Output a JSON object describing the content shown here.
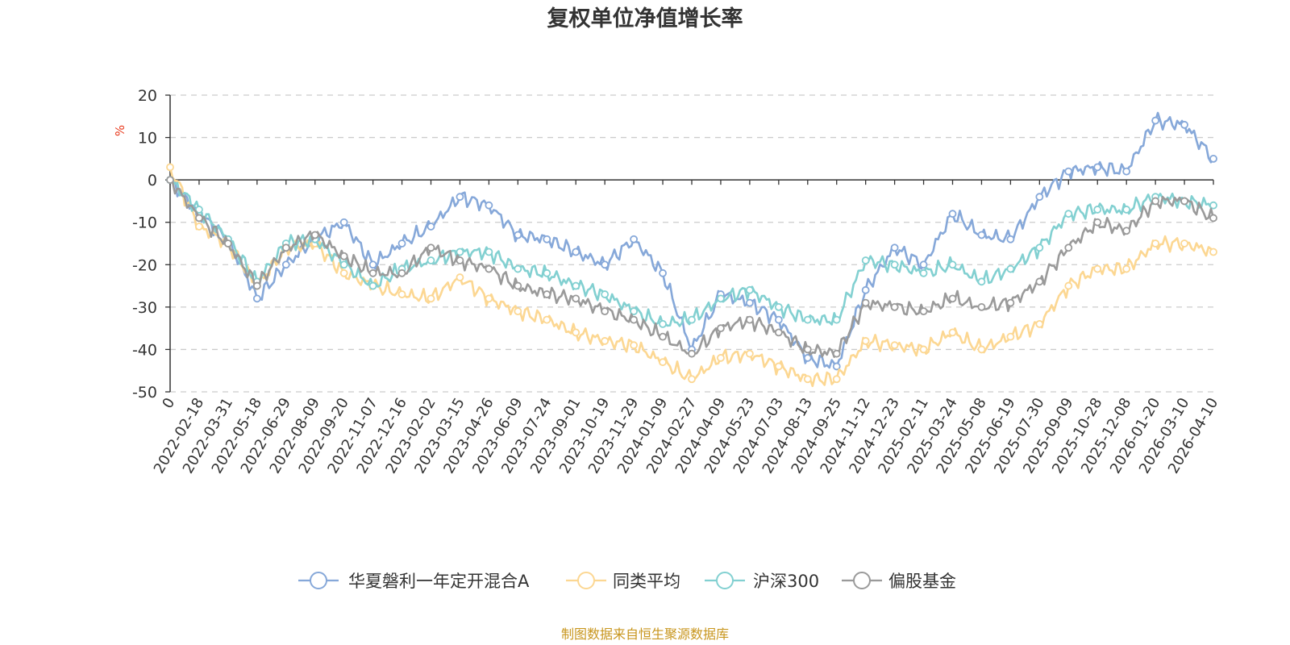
{
  "chart_data": {
    "type": "line",
    "title": "复权单位净值增长率",
    "ylabel": "%",
    "xlabel": "",
    "ylim": [
      -50,
      20
    ],
    "yticks": [
      20,
      10,
      0,
      -10,
      -20,
      -30,
      -40,
      -50
    ],
    "grid": true,
    "legend_position": "bottom-center",
    "source": "制图数据来自恒生聚源数据库",
    "categories": [
      "0",
      "2022-02-18",
      "2022-03-31",
      "2022-05-18",
      "2022-06-29",
      "2022-08-09",
      "2022-09-20",
      "2022-11-07",
      "2022-12-16",
      "2023-02-02",
      "2023-03-15",
      "2023-04-26",
      "2023-06-09",
      "2023-07-24",
      "2023-09-01",
      "2023-10-19",
      "2023-11-29",
      "2024-01-09",
      "2024-02-27",
      "2024-04-09",
      "2024-05-23",
      "2024-07-03",
      "2024-08-13",
      "2024-09-25",
      "2024-11-12",
      "2024-12-23",
      "2025-02-11",
      "2025-03-24",
      "2025-05-08",
      "2025-06-19",
      "2025-07-30",
      "2025-09-09",
      "2025-10-28",
      "2025-12-08",
      "2026-01-20",
      "2026-03-10",
      "2026-04-10"
    ],
    "series": [
      {
        "name": "华夏磐利一年定开混合A",
        "color": "#86a8d9",
        "values": [
          0,
          -8,
          -14,
          -28,
          -20,
          -14,
          -10,
          -20,
          -15,
          -11,
          -4,
          -6,
          -13,
          -14,
          -17,
          -20,
          -14,
          -22,
          -40,
          -27,
          -29,
          -33,
          -42,
          -44,
          -26,
          -16,
          -20,
          -8,
          -13,
          -14,
          -4,
          2,
          3,
          2,
          14,
          13,
          5
        ]
      },
      {
        "name": "同类平均",
        "color": "#fcd792",
        "values": [
          3,
          -11,
          -15,
          -25,
          -16,
          -15,
          -22,
          -25,
          -27,
          -28,
          -23,
          -28,
          -31,
          -33,
          -36,
          -38,
          -39,
          -43,
          -47,
          -42,
          -41,
          -44,
          -47,
          -47,
          -38,
          -39,
          -40,
          -36,
          -40,
          -37,
          -34,
          -25,
          -21,
          -21,
          -15,
          -15,
          -17
        ]
      },
      {
        "name": "沪深300",
        "color": "#82d0d1",
        "values": [
          0,
          -7,
          -14,
          -24,
          -15,
          -14,
          -20,
          -25,
          -21,
          -19,
          -17,
          -17,
          -21,
          -22,
          -25,
          -27,
          -31,
          -34,
          -33,
          -28,
          -26,
          -30,
          -33,
          -33,
          -19,
          -20,
          -22,
          -20,
          -24,
          -21,
          -16,
          -8,
          -7,
          -7,
          -4,
          -5,
          -6
        ]
      },
      {
        "name": "偏股基金",
        "color": "#9a9a9a",
        "values": [
          0,
          -9,
          -15,
          -25,
          -16,
          -13,
          -18,
          -22,
          -22,
          -16,
          -19,
          -21,
          -25,
          -27,
          -28,
          -31,
          -33,
          -37,
          -41,
          -35,
          -33,
          -36,
          -40,
          -41,
          -29,
          -30,
          -31,
          -28,
          -30,
          -29,
          -24,
          -16,
          -10,
          -12,
          -5,
          -5,
          -9
        ]
      }
    ]
  }
}
